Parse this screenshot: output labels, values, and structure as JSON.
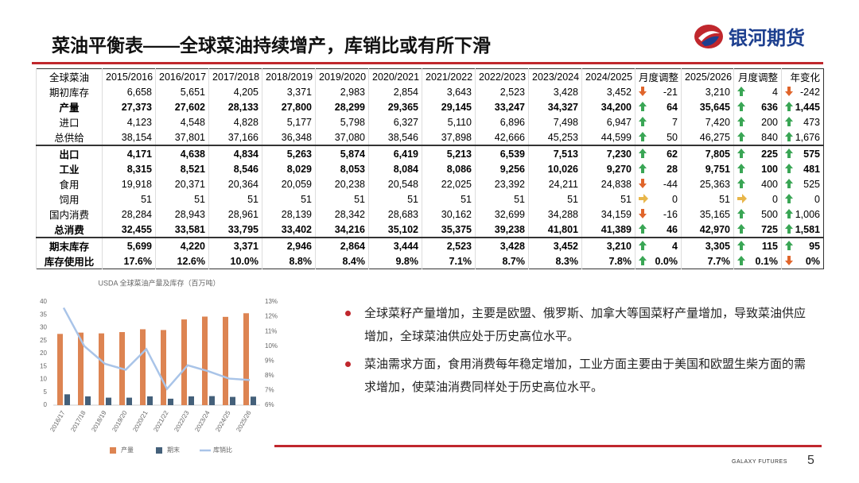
{
  "header": {
    "title": "菜油平衡表——全球菜油持续增产，库销比或有所下滑",
    "logo": "银河期货"
  },
  "table": {
    "header": [
      "全球菜油",
      "2015/2016",
      "2016/2017",
      "2017/2018",
      "2018/2019",
      "2019/2020",
      "2020/2021",
      "2021/2022",
      "2022/2023",
      "2023/2024",
      "2024/2025",
      "月度调整",
      "2025/2026",
      "月度调整",
      "年变化"
    ],
    "rows": [
      {
        "label": "期初库存",
        "bold": false,
        "values": [
          "6,658",
          "5,651",
          "4,205",
          "3,371",
          "2,983",
          "2,854",
          "3,643",
          "2,523",
          "3,428",
          "3,452",
          "-21",
          "3,210",
          "4",
          "-242"
        ],
        "arrows": [
          "down",
          "up",
          "down"
        ]
      },
      {
        "label": "产量",
        "bold": true,
        "values": [
          "27,373",
          "27,602",
          "28,133",
          "27,800",
          "28,299",
          "29,365",
          "29,145",
          "33,247",
          "34,327",
          "34,200",
          "64",
          "35,645",
          "636",
          "1,445"
        ],
        "arrows": [
          "up",
          "up",
          "up"
        ]
      },
      {
        "label": "进口",
        "bold": false,
        "values": [
          "4,123",
          "4,548",
          "4,828",
          "5,177",
          "5,798",
          "6,327",
          "5,110",
          "6,896",
          "7,498",
          "6,947",
          "7",
          "7,420",
          "200",
          "473"
        ],
        "arrows": [
          "up",
          "up",
          "up"
        ]
      },
      {
        "label": "总供给",
        "bold": false,
        "values": [
          "38,154",
          "37,801",
          "37,166",
          "36,348",
          "37,080",
          "38,546",
          "37,898",
          "42,666",
          "45,253",
          "44,599",
          "50",
          "46,275",
          "840",
          "1,676"
        ],
        "arrows": [
          "up",
          "up",
          "up"
        ]
      },
      {
        "label": "出口",
        "bold": true,
        "values": [
          "4,171",
          "4,638",
          "4,834",
          "5,263",
          "5,874",
          "6,419",
          "5,213",
          "6,539",
          "7,513",
          "7,230",
          "62",
          "7,805",
          "225",
          "575"
        ],
        "arrows": [
          "up",
          "up",
          "up"
        ]
      },
      {
        "label": "工业",
        "bold": true,
        "values": [
          "8,315",
          "8,521",
          "8,546",
          "8,029",
          "8,053",
          "8,084",
          "8,086",
          "9,256",
          "10,026",
          "9,270",
          "28",
          "9,751",
          "100",
          "481"
        ],
        "arrows": [
          "up",
          "up",
          "up"
        ]
      },
      {
        "label": "食用",
        "bold": false,
        "values": [
          "19,918",
          "20,371",
          "20,364",
          "20,059",
          "20,238",
          "20,548",
          "22,025",
          "23,392",
          "24,211",
          "24,838",
          "-44",
          "25,363",
          "400",
          "525"
        ],
        "arrows": [
          "down",
          "up",
          "up"
        ]
      },
      {
        "label": "饲用",
        "bold": false,
        "values": [
          "51",
          "51",
          "51",
          "51",
          "51",
          "51",
          "51",
          "51",
          "51",
          "51",
          "0",
          "51",
          "0",
          "0"
        ],
        "arrows": [
          "flat",
          "flat",
          "up"
        ]
      },
      {
        "label": "国内消费",
        "bold": false,
        "values": [
          "28,284",
          "28,943",
          "28,961",
          "28,139",
          "28,342",
          "28,683",
          "30,162",
          "32,699",
          "34,288",
          "34,159",
          "-16",
          "35,165",
          "500",
          "1,006"
        ],
        "arrows": [
          "down",
          "up",
          "up"
        ]
      },
      {
        "label": "总消费",
        "bold": true,
        "values": [
          "32,455",
          "33,581",
          "33,795",
          "33,402",
          "34,216",
          "35,102",
          "35,375",
          "39,238",
          "41,801",
          "41,389",
          "46",
          "42,970",
          "725",
          "1,581"
        ],
        "arrows": [
          "up",
          "up",
          "up"
        ]
      },
      {
        "label": "期末库存",
        "bold": true,
        "values": [
          "5,699",
          "4,220",
          "3,371",
          "2,946",
          "2,864",
          "3,444",
          "2,523",
          "3,428",
          "3,452",
          "3,210",
          "4",
          "3,305",
          "115",
          "95"
        ],
        "arrows": [
          "up",
          "up",
          "up"
        ]
      },
      {
        "label": "库存使用比",
        "bold": true,
        "values": [
          "17.6%",
          "12.6%",
          "10.0%",
          "8.8%",
          "8.4%",
          "9.8%",
          "7.1%",
          "8.7%",
          "8.3%",
          "7.8%",
          "0.0%",
          "7.7%",
          "0.1%",
          "0%"
        ],
        "arrows": [
          "up",
          "up",
          "down"
        ]
      }
    ]
  },
  "chart_data": {
    "type": "bar",
    "title": "USDA 全球菜油产量及库存（百万吨）",
    "categories": [
      "2016/17",
      "2017/18",
      "2018/19",
      "2019/20",
      "2020/21",
      "2021/22",
      "2022/23",
      "2023/24",
      "2024/25",
      "2025/26"
    ],
    "series": [
      {
        "name": "产量",
        "color": "#dd8452",
        "values": [
          27.6,
          28.1,
          27.8,
          28.3,
          29.4,
          29.1,
          33.2,
          34.3,
          34.2,
          35.6
        ]
      },
      {
        "name": "期末",
        "color": "#44607a",
        "values": [
          4.2,
          3.4,
          2.9,
          2.9,
          3.4,
          2.5,
          3.4,
          3.5,
          3.2,
          3.3
        ]
      },
      {
        "name": "库销比",
        "color": "#a9c4e8",
        "type": "line",
        "axis": "y2",
        "values": [
          12.6,
          10.0,
          8.8,
          8.4,
          9.8,
          7.1,
          8.7,
          8.3,
          7.8,
          7.7
        ]
      }
    ],
    "ylim": [
      0,
      40
    ],
    "yticks": [
      0,
      5,
      10,
      15,
      20,
      25,
      30,
      35,
      40
    ],
    "y2lim": [
      6,
      13
    ],
    "y2ticks": [
      {
        "value": 6,
        "label": "6%"
      },
      {
        "value": 7,
        "label": "7%"
      },
      {
        "value": 8,
        "label": "8%"
      },
      {
        "value": 9,
        "label": "9%"
      },
      {
        "value": 10,
        "label": "10%"
      },
      {
        "value": 11,
        "label": "11%"
      },
      {
        "value": 12,
        "label": "12%"
      },
      {
        "value": 13,
        "label": "13%"
      }
    ]
  },
  "bullets": [
    "全球菜籽产量增加，主要是欧盟、俄罗斯、加拿大等国菜籽产量增加，导致菜油供应增加，全球菜油供应处于历史高位水平。",
    "菜油需求方面，食用消费每年稳定增加，工业方面主要由于美国和欧盟生柴方面的需求增加，使菜油消费同样处于历史高位水平。"
  ],
  "footer": {
    "brand": "GALAXY FUTURES",
    "page": 5
  }
}
